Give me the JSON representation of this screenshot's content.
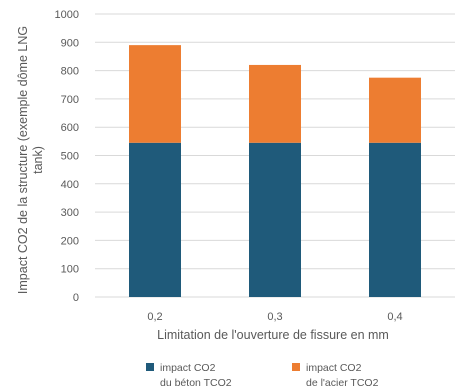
{
  "chart_data": {
    "type": "bar",
    "stacked": true,
    "categories": [
      "0,2",
      "0,3",
      "0,4"
    ],
    "series": [
      {
        "name": [
          "impact CO2",
          "du béton TCO2"
        ],
        "color": "#1f5a7a",
        "values": [
          545,
          545,
          545
        ]
      },
      {
        "name": [
          "impact CO2",
          "de l'acier TCO2"
        ],
        "color": "#ed7d31",
        "values": [
          345,
          275,
          230
        ]
      }
    ],
    "xlabel": "Limitation de l'ouverture de fissure en mm",
    "ylabel": [
      "Impact CO2 de la structure (exemple dôme LNG",
      "tank)"
    ],
    "ylim": [
      0,
      1000
    ],
    "yticks": [
      0,
      100,
      200,
      300,
      400,
      500,
      600,
      700,
      800,
      900,
      1000
    ],
    "grid": true,
    "legend": "bottom"
  }
}
